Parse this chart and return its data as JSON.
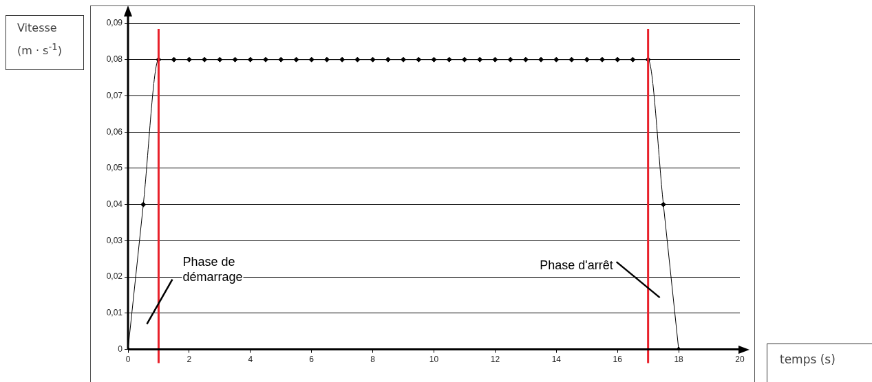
{
  "chart_data": {
    "type": "line",
    "xlabel": "temps (s)",
    "ylabel": "Vitesse (m · s$^{-1}$)",
    "x": [
      0,
      0.5,
      1,
      1.5,
      2,
      2.5,
      3,
      3.5,
      4,
      4.5,
      5,
      5.5,
      6,
      6.5,
      7,
      7.5,
      8,
      8.5,
      9,
      9.5,
      10,
      10.5,
      11,
      11.5,
      12,
      12.5,
      13,
      13.5,
      14,
      14.5,
      15,
      15.5,
      16,
      16.5,
      17,
      17.5,
      18
    ],
    "series": [
      {
        "color": "#000000",
        "values": [
          0,
          0.04,
          0.08,
          0.08,
          0.08,
          0.08,
          0.08,
          0.08,
          0.08,
          0.08,
          0.08,
          0.08,
          0.08,
          0.08,
          0.08,
          0.08,
          0.08,
          0.08,
          0.08,
          0.08,
          0.08,
          0.08,
          0.08,
          0.08,
          0.08,
          0.08,
          0.08,
          0.08,
          0.08,
          0.08,
          0.08,
          0.08,
          0.08,
          0.08,
          0.08,
          0.04,
          0
        ]
      }
    ],
    "xlim": [
      0,
      20
    ],
    "xticks": [
      0,
      2,
      4,
      6,
      8,
      10,
      12,
      14,
      16,
      18,
      20
    ],
    "ylim": [
      0,
      0.09
    ],
    "yticks": [
      {
        "value": 0,
        "label": "0"
      },
      {
        "value": 0.01,
        "label": "0,01"
      },
      {
        "value": 0.02,
        "label": "0,02"
      },
      {
        "value": 0.03,
        "label": "0,03"
      },
      {
        "value": 0.04,
        "label": "0,04"
      },
      {
        "value": 0.05,
        "label": "0,05"
      },
      {
        "value": 0.06,
        "label": "0,06"
      },
      {
        "value": 0.07,
        "label": "0,07"
      },
      {
        "value": 0.08,
        "label": "0,08"
      },
      {
        "value": 0.09,
        "label": "0,09"
      }
    ],
    "ref_lines": [
      {
        "axis": "x",
        "value": 1,
        "color": "#e8202a"
      },
      {
        "axis": "x",
        "value": 17,
        "color": "#e8202a"
      }
    ],
    "annotations": [
      "Phase de démarrage",
      "Phase d'arrêt"
    ],
    "grid": "y",
    "legend": false,
    "marker": "diamond",
    "line_style": "solid"
  }
}
